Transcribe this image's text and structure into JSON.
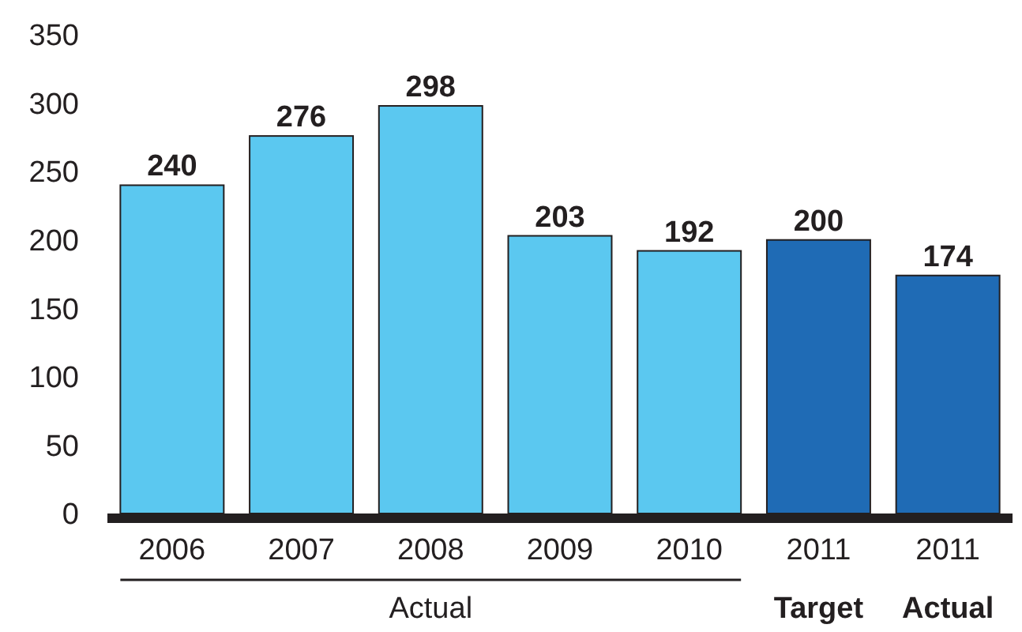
{
  "chart_data": {
    "type": "bar",
    "categories": [
      "2006",
      "2007",
      "2008",
      "2009",
      "2010",
      "2011",
      "2011"
    ],
    "values": [
      240,
      276,
      298,
      203,
      192,
      200,
      174
    ],
    "colors": [
      "#5bc8f0",
      "#5bc8f0",
      "#5bc8f0",
      "#5bc8f0",
      "#5bc8f0",
      "#1f6bb5",
      "#1f6bb5"
    ],
    "ylim": [
      0,
      350
    ],
    "yticks": [
      0,
      50,
      100,
      150,
      200,
      250,
      300,
      350
    ],
    "grid": false,
    "data_labels": true,
    "annotations": [
      "Actual",
      "Target",
      "Actual"
    ]
  }
}
